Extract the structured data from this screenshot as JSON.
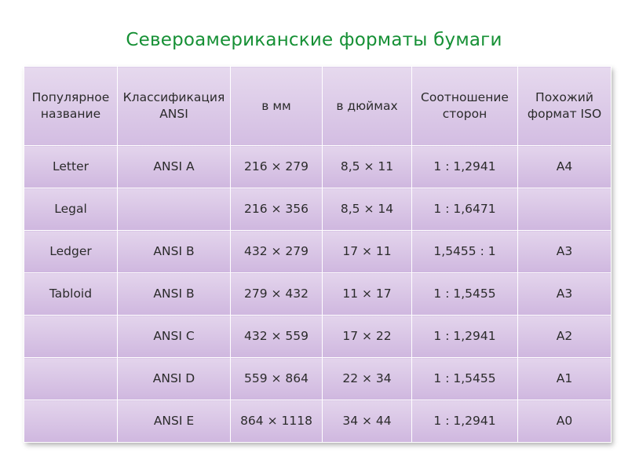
{
  "title": "Североамериканские форматы бумаги",
  "table": {
    "headers": [
      "Популярное название",
      "Классификация ANSI",
      "в мм",
      "в дюймах",
      "Соотношение сторон",
      "Похожий формат ISO"
    ],
    "rows": [
      [
        "Letter",
        "ANSI A",
        "216 × 279",
        "8,5 × 11",
        "1 : 1,2941",
        "A4"
      ],
      [
        "Legal",
        "",
        "216 × 356",
        "8,5 × 14",
        "1 : 1,6471",
        ""
      ],
      [
        "Ledger",
        "ANSI B",
        "432 × 279",
        "17 × 11",
        "1,5455 : 1",
        "A3"
      ],
      [
        "Tabloid",
        "ANSI B",
        "279 × 432",
        "11 × 17",
        "1 : 1,5455",
        "A3"
      ],
      [
        "",
        "ANSI C",
        "432 × 559",
        "17 × 22",
        "1 : 1,2941",
        "A2"
      ],
      [
        "",
        "ANSI D",
        "559 × 864",
        "22 × 34",
        "1 : 1,5455",
        "A1"
      ],
      [
        "",
        "ANSI E",
        "864 × 1118",
        "34 × 44",
        "1 : 1,2941",
        "A0"
      ]
    ]
  },
  "colors": {
    "title": "#169035",
    "cell_fill_top": "#e3d4ec",
    "cell_fill_bottom": "#cfb7df",
    "grid_lines": "#ffffff"
  }
}
